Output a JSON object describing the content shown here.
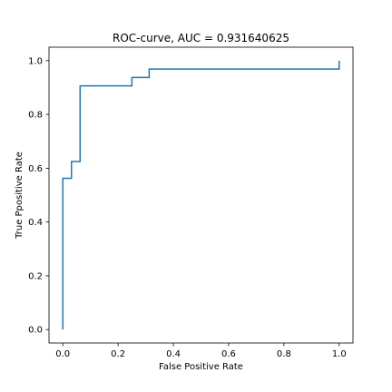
{
  "chart_data": {
    "type": "line",
    "title": "ROC-curve, AUC = 0.931640625",
    "xlabel": "False Positive Rate",
    "ylabel": "True Ppositive Rate",
    "xlim": [
      -0.05,
      1.05
    ],
    "ylim": [
      -0.05,
      1.05
    ],
    "xticks": [
      "0.0",
      "0.2",
      "0.4",
      "0.6",
      "0.8",
      "1.0"
    ],
    "yticks": [
      "0.0",
      "0.2",
      "0.4",
      "0.6",
      "0.8",
      "1.0"
    ],
    "grid": false,
    "series": [
      {
        "color": "#1f77b4",
        "x": [
          0.0,
          0.0,
          0.0,
          0.03125,
          0.03125,
          0.0625,
          0.0625,
          0.25,
          0.25,
          0.3125,
          0.3125,
          1.0,
          1.0
        ],
        "y": [
          0.0,
          0.5625,
          0.5625,
          0.5625,
          0.625,
          0.625,
          0.90625,
          0.90625,
          0.9375,
          0.9375,
          0.96875,
          0.96875,
          1.0
        ]
      }
    ]
  }
}
